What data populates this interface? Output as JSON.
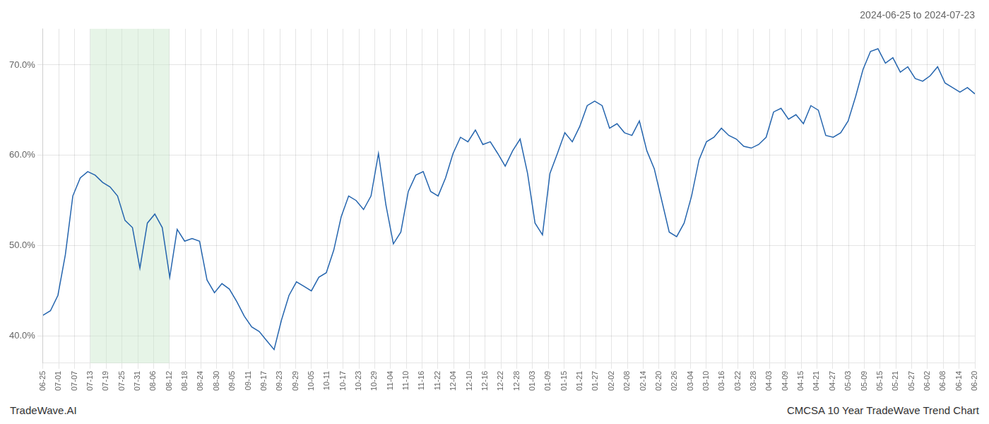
{
  "chart_data": {
    "type": "line",
    "title": "2024-06-25 to 2024-07-23",
    "annotations": [
      "TradeWave.AI",
      "CMCSA 10 Year TradeWave Trend Chart"
    ],
    "color": "#2565ae",
    "grid": true,
    "x": [
      0,
      1,
      2,
      3,
      4,
      5,
      6,
      7,
      8,
      9,
      10,
      11,
      12,
      13,
      14,
      15,
      16,
      17,
      18,
      19,
      20,
      21,
      22,
      23,
      24,
      25,
      26,
      27,
      28,
      29,
      30,
      31,
      32,
      33,
      34,
      35,
      36,
      37,
      38,
      39,
      40,
      41,
      42,
      43,
      44,
      45,
      46,
      47,
      48,
      49,
      50,
      51,
      52,
      53,
      54,
      55,
      56,
      57,
      58,
      59,
      60,
      61,
      62,
      63,
      64,
      65,
      66,
      67,
      68,
      69,
      70,
      71,
      72,
      73,
      74,
      75,
      76,
      77,
      78,
      79,
      80,
      81,
      82,
      83,
      84,
      85,
      86,
      87,
      88,
      89,
      90,
      91,
      92,
      93,
      94,
      95,
      96,
      97,
      98,
      99,
      100,
      101,
      102,
      103,
      104,
      105,
      106,
      107,
      108,
      109,
      110,
      111,
      112,
      113,
      114,
      115,
      116,
      117,
      118,
      119,
      120,
      121,
      122,
      123,
      124,
      125
    ],
    "values": [
      42.3,
      42.8,
      44.5,
      49.0,
      55.5,
      57.5,
      58.2,
      57.8,
      57.0,
      56.5,
      55.5,
      52.8,
      52.0,
      47.5,
      52.5,
      53.5,
      52.0,
      46.5,
      51.8,
      50.5,
      50.8,
      50.5,
      46.2,
      44.8,
      45.8,
      45.2,
      43.8,
      42.2,
      41.0,
      40.5,
      39.5,
      38.5,
      41.8,
      44.5,
      46.0,
      45.5,
      45.0,
      46.5,
      47.0,
      49.5,
      53.2,
      55.5,
      55.0,
      54.0,
      55.5,
      60.2,
      54.5,
      50.2,
      51.5,
      56.0,
      57.8,
      58.2,
      56.0,
      55.5,
      57.5,
      60.2,
      62.0,
      61.5,
      62.8,
      61.2,
      61.5,
      60.2,
      58.8,
      60.5,
      61.8,
      58.0,
      52.5,
      51.2,
      58.0,
      60.2,
      62.5,
      61.5,
      63.2,
      65.5,
      66.0,
      65.5,
      63.0,
      63.5,
      62.5,
      62.2,
      63.8,
      60.5,
      58.5,
      55.0,
      51.5,
      51.0,
      52.5,
      55.5,
      59.5,
      61.5,
      62.0,
      63.0,
      62.2,
      61.8,
      61.0,
      60.8,
      61.2,
      62.0,
      64.8,
      65.2,
      64.0,
      64.5,
      63.5,
      65.5,
      65.0,
      62.2,
      62.0,
      62.5,
      63.8,
      66.5,
      69.5,
      71.5,
      71.8,
      70.2,
      70.8,
      69.2,
      69.8,
      68.5,
      68.2,
      68.8,
      69.8,
      68.0,
      67.5,
      67.0,
      67.5,
      66.8
    ],
    "xlim": [
      0,
      125
    ],
    "xticks": [
      {
        "value": 0,
        "label": "06-25"
      },
      {
        "value": 2.119,
        "label": "07-01"
      },
      {
        "value": 4.237,
        "label": "07-07"
      },
      {
        "value": 6.356,
        "label": "07-13"
      },
      {
        "value": 8.475,
        "label": "07-19"
      },
      {
        "value": 10.593,
        "label": "07-25"
      },
      {
        "value": 12.712,
        "label": "07-31"
      },
      {
        "value": 14.831,
        "label": "08-06"
      },
      {
        "value": 16.949,
        "label": "08-12"
      },
      {
        "value": 19.068,
        "label": "08-18"
      },
      {
        "value": 21.186,
        "label": "08-24"
      },
      {
        "value": 23.305,
        "label": "08-30"
      },
      {
        "value": 25.424,
        "label": "09-05"
      },
      {
        "value": 27.542,
        "label": "09-11"
      },
      {
        "value": 29.661,
        "label": "09-17"
      },
      {
        "value": 31.78,
        "label": "09-23"
      },
      {
        "value": 33.898,
        "label": "09-29"
      },
      {
        "value": 36.017,
        "label": "10-05"
      },
      {
        "value": 38.136,
        "label": "10-11"
      },
      {
        "value": 40.254,
        "label": "10-17"
      },
      {
        "value": 42.373,
        "label": "10-23"
      },
      {
        "value": 44.492,
        "label": "10-29"
      },
      {
        "value": 46.61,
        "label": "11-04"
      },
      {
        "value": 48.729,
        "label": "11-10"
      },
      {
        "value": 50.847,
        "label": "11-16"
      },
      {
        "value": 52.966,
        "label": "11-22"
      },
      {
        "value": 55.085,
        "label": "12-04"
      },
      {
        "value": 57.203,
        "label": "12-10"
      },
      {
        "value": 59.322,
        "label": "12-16"
      },
      {
        "value": 61.441,
        "label": "12-22"
      },
      {
        "value": 63.559,
        "label": "12-28"
      },
      {
        "value": 65.678,
        "label": "01-03"
      },
      {
        "value": 67.797,
        "label": "01-09"
      },
      {
        "value": 69.915,
        "label": "01-15"
      },
      {
        "value": 72.034,
        "label": "01-21"
      },
      {
        "value": 74.153,
        "label": "01-27"
      },
      {
        "value": 76.271,
        "label": "02-02"
      },
      {
        "value": 78.39,
        "label": "02-08"
      },
      {
        "value": 80.508,
        "label": "02-14"
      },
      {
        "value": 82.627,
        "label": "02-20"
      },
      {
        "value": 84.746,
        "label": "02-26"
      },
      {
        "value": 86.864,
        "label": "03-04"
      },
      {
        "value": 88.983,
        "label": "03-10"
      },
      {
        "value": 91.102,
        "label": "03-16"
      },
      {
        "value": 93.22,
        "label": "03-22"
      },
      {
        "value": 95.339,
        "label": "03-28"
      },
      {
        "value": 97.458,
        "label": "04-03"
      },
      {
        "value": 99.576,
        "label": "04-09"
      },
      {
        "value": 101.695,
        "label": "04-15"
      },
      {
        "value": 103.814,
        "label": "04-21"
      },
      {
        "value": 105.932,
        "label": "04-27"
      },
      {
        "value": 108.051,
        "label": "05-03"
      },
      {
        "value": 110.169,
        "label": "05-09"
      },
      {
        "value": 112.288,
        "label": "05-15"
      },
      {
        "value": 114.407,
        "label": "05-21"
      },
      {
        "value": 116.525,
        "label": "05-27"
      },
      {
        "value": 118.644,
        "label": "06-02"
      },
      {
        "value": 120.763,
        "label": "06-08"
      },
      {
        "value": 122.881,
        "label": "06-14"
      },
      {
        "value": 125,
        "label": "06-20"
      }
    ],
    "ylim": [
      37.0,
      74.0
    ],
    "yticks": [
      {
        "value": 40.0,
        "label": "40.0%"
      },
      {
        "value": 50.0,
        "label": "50.0%"
      },
      {
        "value": 60.0,
        "label": "60.0%"
      },
      {
        "value": 70.0,
        "label": "70.0%"
      }
    ],
    "highlight": {
      "from": 6.356,
      "to": 16.949,
      "color": "#c8e6c9"
    }
  }
}
